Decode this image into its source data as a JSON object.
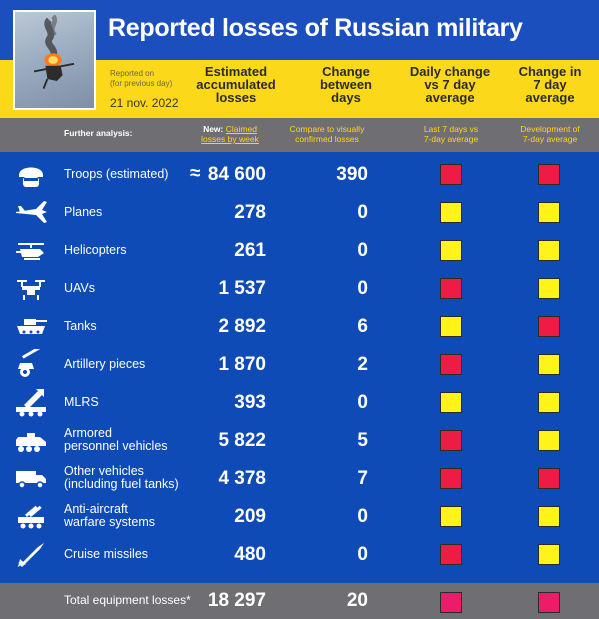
{
  "header": {
    "title": "Reported losses of Russian military",
    "reported_on": "Reported on",
    "reported_sub": "(for previous day)",
    "date": "21 nov. 2022",
    "col_accumulated": "Estimated\naccumulated\nlosses",
    "col_change": "Change\nbetween\ndays",
    "col_daily_vs7": "Daily change\nvs 7 day\naverage",
    "col_change7": "Change in\n7 day\naverage"
  },
  "analysis": {
    "label": "Further analysis:",
    "new_prefix": "New:",
    "claimed_link": "Claimed\nlosses by week",
    "compare_link": "Compare to visually\nconfirmed losses",
    "last7_link": "Last 7 days vs\n7-day average",
    "development_link": "Development of\n7-day average"
  },
  "colors": {
    "red": "#ee1b45",
    "yellow": "#fff317",
    "magenta": "#ee1b6b",
    "blue": "#0e4bb7",
    "gold": "#fcd81a"
  },
  "chart_data": {
    "type": "table",
    "title": "Reported losses of Russian military",
    "columns": [
      "Estimated accumulated losses",
      "Change between days",
      "Daily change vs 7 day average",
      "Change in 7 day average"
    ],
    "rows": [
      {
        "label": "Troops (estimated)",
        "icon": "soldier-helmet-icon",
        "approx": "≈",
        "total": "84 600",
        "change": "390",
        "daily_vs7": "red",
        "change7": "red"
      },
      {
        "label": "Planes",
        "icon": "plane-icon",
        "approx": "",
        "total": "278",
        "change": "0",
        "daily_vs7": "yellow",
        "change7": "yellow"
      },
      {
        "label": "Helicopters",
        "icon": "helicopter-icon",
        "approx": "",
        "total": "261",
        "change": "0",
        "daily_vs7": "yellow",
        "change7": "yellow"
      },
      {
        "label": "UAVs",
        "icon": "drone-icon",
        "approx": "",
        "total": "1 537",
        "change": "0",
        "daily_vs7": "red",
        "change7": "yellow"
      },
      {
        "label": "Tanks",
        "icon": "tank-icon",
        "approx": "",
        "total": "2 892",
        "change": "6",
        "daily_vs7": "yellow",
        "change7": "red"
      },
      {
        "label": "Artillery pieces",
        "icon": "artillery-icon",
        "approx": "",
        "total": "1 870",
        "change": "2",
        "daily_vs7": "red",
        "change7": "yellow"
      },
      {
        "label": "MLRS",
        "icon": "rocket-launcher-icon",
        "approx": "",
        "total": "393",
        "change": "0",
        "daily_vs7": "yellow",
        "change7": "yellow"
      },
      {
        "label": "Armored\npersonnel vehicles",
        "icon": "apc-icon",
        "approx": "",
        "total": "5 822",
        "change": "5",
        "daily_vs7": "red",
        "change7": "yellow"
      },
      {
        "label": "Other vehicles\n(including fuel tanks)",
        "icon": "truck-icon",
        "approx": "",
        "total": "4 378",
        "change": "7",
        "daily_vs7": "red",
        "change7": "red"
      },
      {
        "label": "Anti-aircraft\nwarfare systems",
        "icon": "anti-aircraft-icon",
        "approx": "",
        "total": "209",
        "change": "0",
        "daily_vs7": "yellow",
        "change7": "yellow"
      },
      {
        "label": "Cruise missiles",
        "icon": "missile-icon",
        "approx": "",
        "total": "480",
        "change": "0",
        "daily_vs7": "red",
        "change7": "yellow"
      }
    ],
    "total": {
      "label": "Total equipment losses*",
      "total": "18 297",
      "change": "20",
      "daily_vs7": "magenta",
      "change7": "magenta"
    }
  }
}
